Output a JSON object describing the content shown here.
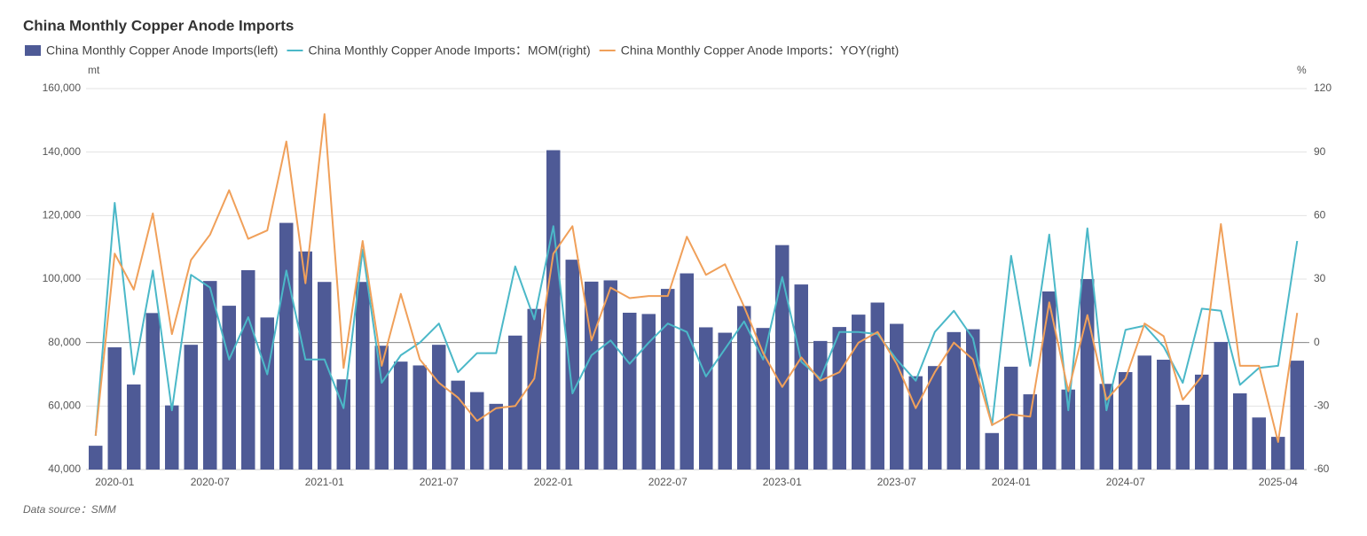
{
  "chart_data": {
    "type": "bar-line",
    "title": "China Monthly Copper Anode Imports",
    "y_unit": "mt",
    "y2_unit": "%",
    "source": "Data source：SMM",
    "categories": [
      null,
      "2020-01",
      null,
      null,
      null,
      null,
      "2020-07",
      null,
      null,
      null,
      null,
      null,
      "2021-01",
      null,
      null,
      null,
      null,
      null,
      "2021-07",
      null,
      null,
      null,
      null,
      null,
      "2022-01",
      null,
      null,
      null,
      null,
      null,
      "2022-07",
      null,
      null,
      null,
      null,
      null,
      "2023-01",
      null,
      null,
      null,
      null,
      null,
      "2023-07",
      null,
      null,
      null,
      null,
      null,
      "2024-01",
      null,
      null,
      null,
      null,
      null,
      "2024-07",
      null,
      null,
      null,
      null,
      null,
      null,
      null,
      "2025-04",
      null
    ],
    "ylim": [
      40000,
      160000
    ],
    "yticks": [
      {
        "value": 40000,
        "label": "40,000"
      },
      {
        "value": 60000,
        "label": "60,000"
      },
      {
        "value": 80000,
        "label": "80,000"
      },
      {
        "value": 100000,
        "label": "100,000"
      },
      {
        "value": 120000,
        "label": "120,000"
      },
      {
        "value": 140000,
        "label": "140,000"
      },
      {
        "value": 160000,
        "label": "160,000"
      }
    ],
    "y2lim": [
      -60,
      120
    ],
    "y2ticks": [
      -60,
      -30,
      0,
      30,
      60,
      90,
      120
    ],
    "grid": true,
    "series": [
      {
        "name": "China Monthly Copper Anode Imports(left)",
        "type": "bar",
        "color": "#4e5a96",
        "values": [
          47500,
          78500,
          66800,
          89300,
          60200,
          79300,
          99400,
          91600,
          102800,
          87900,
          117700,
          108700,
          99100,
          68400,
          99100,
          79000,
          74000,
          72800,
          79300,
          68000,
          64400,
          60700,
          82200,
          90600,
          140600,
          106100,
          99200,
          99600,
          89400,
          89000,
          96900,
          101800,
          84800,
          83100,
          91500,
          84600,
          110700,
          98300,
          80500,
          84900,
          88800,
          92600,
          85900,
          69400,
          72600,
          83300,
          84200,
          51500,
          72400,
          63700,
          96100,
          65200,
          100000,
          67000,
          70700,
          75900,
          74600,
          60400,
          69900,
          80200,
          64000,
          56400,
          50300,
          74300
        ]
      },
      {
        "name": "China Monthly Copper Anode Imports：MOM(right)",
        "type": "line",
        "axis": "y2",
        "color": "#4bb8c8",
        "values": [
          -44,
          66,
          -15,
          34,
          -32,
          32,
          26,
          -8,
          12,
          -15,
          34,
          -8,
          -8,
          -31,
          44,
          -19,
          -6,
          0,
          9,
          -14,
          -5,
          -5,
          36,
          11,
          55,
          -24,
          -6,
          1,
          -10,
          0,
          9,
          5,
          -16,
          -3,
          10,
          -8,
          31,
          -9,
          -17,
          5,
          5,
          4,
          -8,
          -18,
          5,
          15,
          2,
          -39,
          41,
          -11,
          51,
          -32,
          54,
          -32,
          6,
          8,
          -2,
          -19,
          16,
          15,
          -20,
          -12,
          -11,
          48
        ]
      },
      {
        "name": "China Monthly Copper Anode Imports：YOY(right)",
        "type": "line",
        "axis": "y2",
        "color": "#f0a05a",
        "values": [
          -44,
          42,
          25,
          61,
          4,
          39,
          51,
          72,
          49,
          53,
          95,
          28,
          108,
          -12,
          48,
          -11,
          23,
          -8,
          -19,
          -26,
          -37,
          -31,
          -30,
          -17,
          42,
          55,
          1,
          26,
          21,
          22,
          22,
          50,
          32,
          37,
          17,
          -5,
          -21,
          -7,
          -18,
          -14,
          0,
          5,
          -10,
          -31,
          -14,
          0,
          -8,
          -39,
          -34,
          -35,
          19,
          -23,
          13,
          -27,
          -17,
          9,
          3,
          -27,
          -16,
          56,
          -11,
          -11,
          -47,
          14
        ]
      }
    ]
  }
}
